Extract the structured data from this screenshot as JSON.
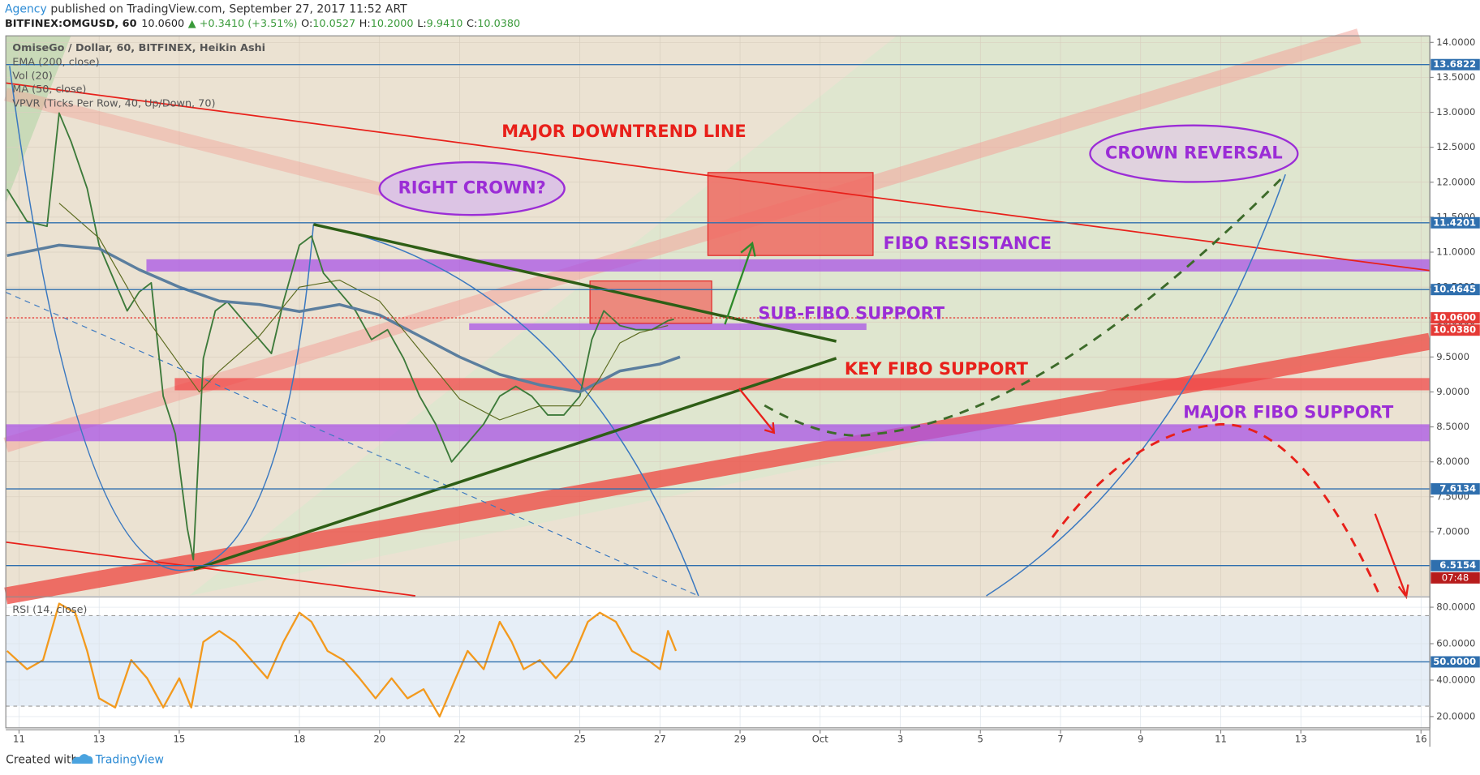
{
  "header": {
    "publisher": "Agency",
    "published": "published on TradingView.com, September 27, 2017 11:52 ART",
    "symbol": "BITFINEX:OMGUSD, 60",
    "last": "10.0600",
    "change": "▲ +0.3410 (+3.51%)",
    "ohlc": [
      {
        "label": "O:",
        "value": "10.0527"
      },
      {
        "label": "H:",
        "value": "10.2000"
      },
      {
        "label": "L:",
        "value": "9.9410"
      },
      {
        "label": "C:",
        "value": "10.0380"
      }
    ]
  },
  "chart_data": [
    {
      "type": "line",
      "title": "OmiseGo / Dollar, 60, BITFINEX, Heikin Ashi",
      "indicators": [
        "Vol (20)",
        "VPVR (Ticks Per Row, 40, Up/Down, 70)"
      ],
      "xlim": [
        10.67,
        46.22
      ],
      "ylim": [
        6.083,
        14.094
      ],
      "grid": true,
      "yticks": [
        {
          "value": 7,
          "label": "7.0000"
        },
        {
          "value": 7.5,
          "label": "7.5000"
        },
        {
          "value": 8,
          "label": "8.0000"
        },
        {
          "value": 8.5,
          "label": "8.5000"
        },
        {
          "value": 9,
          "label": "9.0000"
        },
        {
          "value": 9.5,
          "label": "9.5000"
        },
        {
          "value": 10,
          "label": "10.0000"
        },
        {
          "value": 10.5,
          "label": "10.5000"
        },
        {
          "value": 11,
          "label": "11.0000"
        },
        {
          "value": 11.5,
          "label": "11.5000"
        },
        {
          "value": 12,
          "label": "12.0000"
        },
        {
          "value": 12.5,
          "label": "12.5000"
        },
        {
          "value": 13,
          "label": "13.0000"
        },
        {
          "value": 13.5,
          "label": "13.5000"
        },
        {
          "value": 14,
          "label": "14.0000"
        }
      ],
      "series": [
        {
          "color": "#3d7a3a",
          "x": [
            10.7,
            11.2,
            11.7,
            12.0,
            12.3,
            12.7,
            13.0,
            13.4,
            13.7,
            14.0,
            14.3,
            14.6,
            14.9,
            15.2,
            15.35,
            15.6,
            15.9,
            16.2,
            16.6,
            17.0,
            17.3,
            17.6,
            18.0,
            18.3,
            18.6,
            19.0,
            19.4,
            19.8,
            20.2,
            20.6,
            21.0,
            21.4,
            21.8,
            22.2,
            22.6,
            23.0,
            23.4,
            23.8,
            24.2,
            24.6,
            25.0,
            25.3,
            25.6,
            26.0,
            26.4,
            26.8,
            27.2,
            27.35
          ],
          "values": [
            11.9,
            11.44,
            11.37,
            12.99,
            12.58,
            11.91,
            11.1,
            10.56,
            10.16,
            10.43,
            10.56,
            8.94,
            8.4,
            7.05,
            6.6,
            9.48,
            10.16,
            10.29,
            10.02,
            9.75,
            9.55,
            10.29,
            11.1,
            11.23,
            10.7,
            10.43,
            10.16,
            9.75,
            9.89,
            9.48,
            8.94,
            8.54,
            8.0,
            8.27,
            8.54,
            8.94,
            9.08,
            8.94,
            8.67,
            8.67,
            8.94,
            9.75,
            10.16,
            9.95,
            9.89,
            9.89,
            10.02,
            10.04
          ],
          "width": 1.6
        },
        {
          "name": "EMA (200, close)",
          "color": "#5b7e9e",
          "x": [
            10.7,
            12,
            13,
            14,
            15,
            16,
            17,
            18,
            19,
            20,
            21,
            22,
            23,
            24,
            25,
            26,
            27,
            27.5
          ],
          "values": [
            10.95,
            11.1,
            11.05,
            10.75,
            10.5,
            10.3,
            10.25,
            10.15,
            10.25,
            10.1,
            9.8,
            9.5,
            9.25,
            9.1,
            9.0,
            9.3,
            9.4,
            9.5
          ],
          "width": 3
        },
        {
          "name": "MA (50, close)",
          "color": "#5b6a1f",
          "x": [
            12,
            13,
            14,
            15,
            15.5,
            16,
            17,
            18,
            19,
            20,
            21,
            22,
            23,
            24,
            25,
            25.5,
            26,
            26.5,
            27.2
          ],
          "values": [
            11.7,
            11.2,
            10.2,
            9.4,
            9.0,
            9.3,
            9.8,
            10.5,
            10.6,
            10.3,
            9.6,
            8.9,
            8.6,
            8.8,
            8.8,
            9.2,
            9.7,
            9.85,
            9.95
          ],
          "width": 1
        }
      ],
      "levels": [
        {
          "value": 13.6822,
          "label": "13.6822",
          "color": "#2f6fae",
          "line": "solid"
        },
        {
          "value": 11.4201,
          "label": "11.4201",
          "color": "#2f6fae",
          "line": "solid"
        },
        {
          "value": 10.4645,
          "label": "10.4645",
          "color": "#2f6fae",
          "line": "solid"
        },
        {
          "value": 10.06,
          "label": "10.0600",
          "color": "#e53935",
          "line": "dotted"
        },
        {
          "value": 10.038,
          "label": "10.0380",
          "color": "#e53935",
          "line": "none"
        },
        {
          "value": 7.6134,
          "label": "7.6134",
          "color": "#2f6fae",
          "line": "solid"
        },
        {
          "value": 6.5154,
          "label": "6.5154",
          "color": "#2f6fae",
          "line": "solid"
        }
      ],
      "countdown": "07:48",
      "annotations": [
        {
          "text": "MAJOR DOWNTREND LINE",
          "color": "#e8201a"
        },
        {
          "text": "RIGHT CROWN?",
          "color": "#9b2dd6"
        },
        {
          "text": "CROWN REVERSAL",
          "color": "#9b2dd6"
        },
        {
          "text": "FIBO RESISTANCE",
          "color": "#9b2dd6"
        },
        {
          "text": "SUB-FIBO SUPPORT",
          "color": "#9b2dd6"
        },
        {
          "text": "KEY FIBO SUPPORT",
          "color": "#e8201a"
        },
        {
          "text": "MAJOR FIBO SUPPORT",
          "color": "#9b2dd6"
        }
      ]
    },
    {
      "type": "line",
      "title": "RSI (14, close)",
      "xlim": [
        10.67,
        46.22
      ],
      "ylim": [
        13.8,
        85.2
      ],
      "xticks": [
        11,
        13,
        15,
        18,
        20,
        22,
        25,
        27,
        29,
        {
          "value": 31,
          "label": "Oct"
        },
        {
          "value": 33,
          "label": "3"
        },
        {
          "value": 35,
          "label": "5"
        },
        {
          "value": 37,
          "label": "7"
        },
        {
          "value": 39,
          "label": "9"
        },
        {
          "value": 41,
          "label": "11"
        },
        {
          "value": 43,
          "label": "13"
        },
        {
          "value": 46,
          "label": "16"
        }
      ],
      "yticks": [
        {
          "value": 20,
          "label": "20.0000"
        },
        {
          "value": 40,
          "label": "40.0000"
        },
        {
          "value": 60,
          "label": "60.0000"
        },
        {
          "value": 80,
          "label": "80.0000"
        }
      ],
      "grid": true,
      "series": [
        {
          "color": "#f39a1e",
          "x": [
            10.7,
            11.2,
            11.6,
            12.0,
            12.4,
            12.7,
            13.0,
            13.4,
            13.8,
            14.2,
            14.6,
            15.0,
            15.3,
            15.6,
            16.0,
            16.4,
            16.8,
            17.2,
            17.6,
            18.0,
            18.3,
            18.7,
            19.1,
            19.5,
            19.9,
            20.3,
            20.7,
            21.1,
            21.5,
            21.9,
            22.2,
            22.6,
            23.0,
            23.3,
            23.6,
            24.0,
            24.4,
            24.8,
            25.2,
            25.5,
            25.9,
            26.3,
            26.7,
            27.0,
            27.2,
            27.4
          ],
          "values": [
            56,
            46,
            51,
            82,
            77,
            56,
            30,
            25,
            51,
            41,
            25,
            41,
            25,
            61,
            67,
            61,
            51,
            41,
            61,
            77,
            72,
            56,
            51,
            41,
            30,
            41,
            30,
            35,
            20,
            41,
            56,
            46,
            72,
            61,
            46,
            51,
            41,
            51,
            72,
            77,
            72,
            56,
            51,
            46,
            67,
            56
          ],
          "width": 2
        }
      ],
      "levels": [
        {
          "value": 50,
          "label": "50.0000",
          "color": "#2f6fae",
          "line": "solid"
        }
      ]
    }
  ],
  "footer": {
    "created": "Created with",
    "brand": "TradingView"
  }
}
